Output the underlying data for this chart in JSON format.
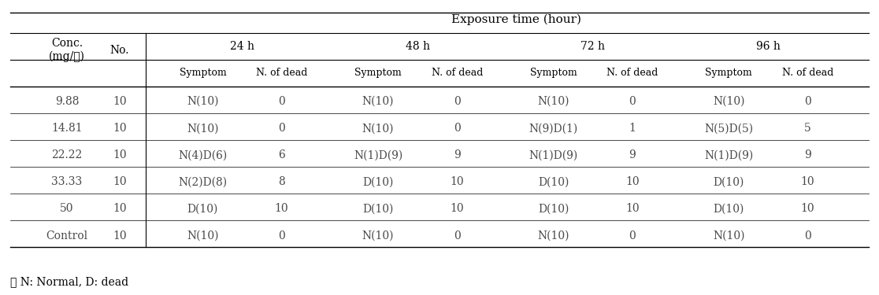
{
  "title": "Exposure time (hour)",
  "col_groups": [
    "24 h",
    "48 h",
    "72 h",
    "96 h"
  ],
  "sub_cols": [
    "Symptom",
    "N. of dead"
  ],
  "row_headers": [
    "Conc.\n(mg/ℓ)",
    "No."
  ],
  "rows": [
    {
      "conc": "9.88",
      "no": "10",
      "data": [
        [
          "N(10)",
          "0"
        ],
        [
          "N(10)",
          "0"
        ],
        [
          "N(10)",
          "0"
        ],
        [
          "N(10)",
          "0"
        ]
      ]
    },
    {
      "conc": "14.81",
      "no": "10",
      "data": [
        [
          "N(10)",
          "0"
        ],
        [
          "N(10)",
          "0"
        ],
        [
          "N(9)D(1)",
          "1"
        ],
        [
          "N(5)D(5)",
          "5"
        ]
      ]
    },
    {
      "conc": "22.22",
      "no": "10",
      "data": [
        [
          "N(4)D(6)",
          "6"
        ],
        [
          "N(1)D(9)",
          "9"
        ],
        [
          "N(1)D(9)",
          "9"
        ],
        [
          "N(1)D(9)",
          "9"
        ]
      ]
    },
    {
      "conc": "33.33",
      "no": "10",
      "data": [
        [
          "N(2)D(8)",
          "8"
        ],
        [
          "D(10)",
          "10"
        ],
        [
          "D(10)",
          "10"
        ],
        [
          "D(10)",
          "10"
        ]
      ]
    },
    {
      "conc": "50",
      "no": "10",
      "data": [
        [
          "D(10)",
          "10"
        ],
        [
          "D(10)",
          "10"
        ],
        [
          "D(10)",
          "10"
        ],
        [
          "D(10)",
          "10"
        ]
      ]
    },
    {
      "conc": "Control",
      "no": "10",
      "data": [
        [
          "N(10)",
          "0"
        ],
        [
          "N(10)",
          "0"
        ],
        [
          "N(10)",
          "0"
        ],
        [
          "N(10)",
          "0"
        ]
      ]
    }
  ],
  "footnote": "※ N: Normal, D: dead",
  "text_color": "#4a4a4a",
  "header_color": "#000000",
  "line_color": "#000000",
  "bg_color": "#ffffff",
  "font_size": 10,
  "header_font_size": 10
}
